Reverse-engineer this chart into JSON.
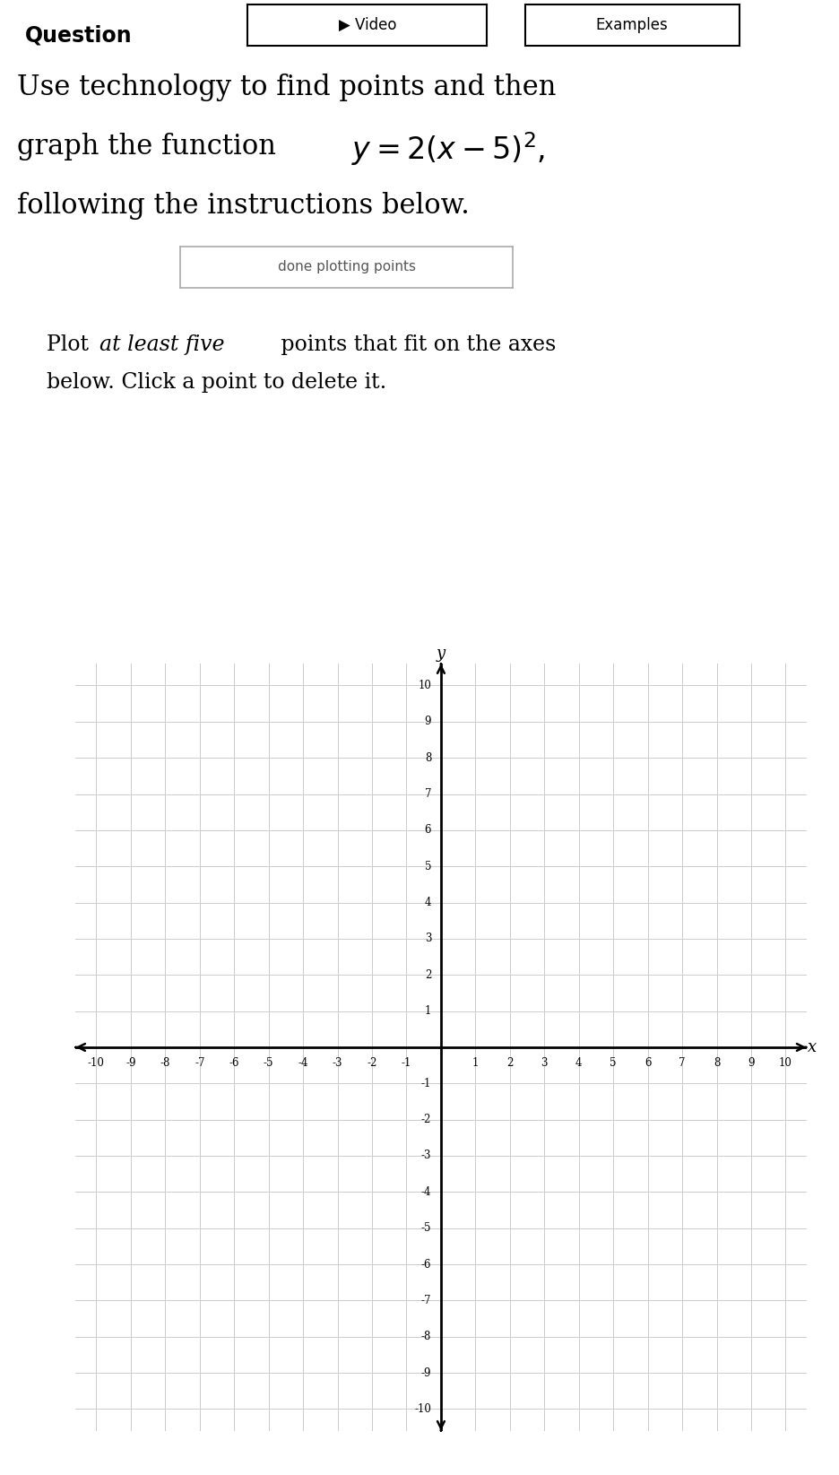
{
  "title_question": "Question",
  "btn_video": "▶ Video",
  "btn_examples": "Examples",
  "main_text_line1": "Use technology to find points and then",
  "main_text_line3": "following the instructions below.",
  "button_label": "done plotting points",
  "xlabel": "x",
  "ylabel": "y",
  "xmin": -10,
  "xmax": 10,
  "ymin": -10,
  "ymax": 10,
  "grid_color": "#cccccc",
  "axis_color": "#000000",
  "background_color": "#ffffff",
  "text_color": "#000000",
  "button_text_color": "#555555",
  "button_border_color": "#aaaaaa",
  "graph_bg": "#f0f0f0",
  "fig_width": 9.37,
  "fig_height": 16.45,
  "dpi": 100
}
